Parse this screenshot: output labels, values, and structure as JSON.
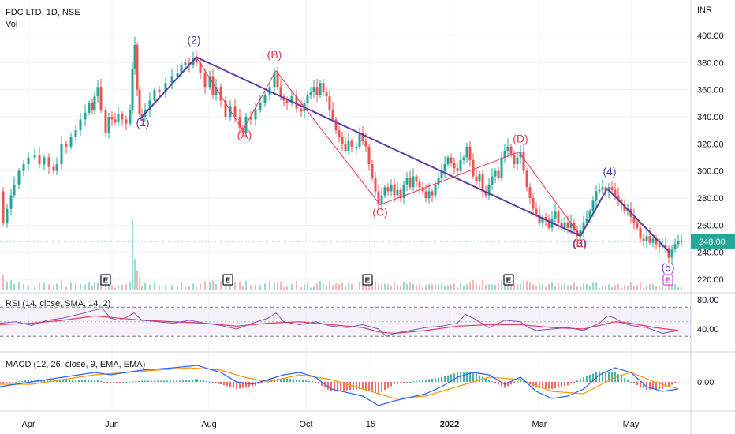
{
  "header": {
    "symbol": "FDC LTD, 1D, NSE",
    "volume_label": "Vol",
    "currency": "INR"
  },
  "indicators": {
    "rsi_label": "RSI (14, close, SMA, 14, 2)",
    "macd_label": "MACD (12, 26, close, 9, EMA, EMA)"
  },
  "colors": {
    "up": "#26a69a",
    "down": "#ef5350",
    "wave_purple": "#5b3fa6",
    "wave_red": "#e53955",
    "price_badge": "#26a69a",
    "rsi_line": "#7e57c2",
    "rsi_ma": "#e53955",
    "macd_line": "#2962ff",
    "signal_line": "#ff9800",
    "earnings_purple": "#c84fd6"
  },
  "chart_data": {
    "type": "candlestick",
    "price_axis": {
      "min": 210,
      "max": 410,
      "ticks": [
        "400.00",
        "380.00",
        "360.00",
        "340.00",
        "320.00",
        "300.00",
        "280.00",
        "260.00",
        "240.00",
        "220.00"
      ],
      "last_price": "248.00"
    },
    "rsi_axis": {
      "ticks": [
        "80.00",
        "40.00"
      ]
    },
    "macd_axis": {
      "ticks": [
        "0.00"
      ]
    },
    "x_ticks": [
      "Apr",
      "Jun",
      "Aug",
      "Oct",
      "15",
      "2022",
      "Mar",
      "May"
    ],
    "price_path": [
      [
        0,
        285
      ],
      [
        4,
        262
      ],
      [
        9,
        272
      ],
      [
        14,
        282
      ],
      [
        18,
        290
      ],
      [
        24,
        300
      ],
      [
        30,
        305
      ],
      [
        36,
        310
      ],
      [
        44,
        312
      ],
      [
        50,
        305
      ],
      [
        56,
        310
      ],
      [
        62,
        303
      ],
      [
        68,
        300
      ],
      [
        72,
        305
      ],
      [
        78,
        320
      ],
      [
        84,
        318
      ],
      [
        90,
        325
      ],
      [
        96,
        330
      ],
      [
        102,
        338
      ],
      [
        108,
        343
      ],
      [
        113,
        350
      ],
      [
        117,
        345
      ],
      [
        120,
        355
      ],
      [
        124,
        362
      ],
      [
        128,
        345
      ],
      [
        134,
        328
      ],
      [
        138,
        340
      ],
      [
        142,
        338
      ],
      [
        146,
        336
      ],
      [
        150,
        342
      ],
      [
        155,
        338
      ],
      [
        160,
        335
      ],
      [
        165,
        345
      ],
      [
        168,
        375
      ],
      [
        171,
        393
      ],
      [
        174,
        360
      ],
      [
        177,
        342
      ],
      [
        180,
        340
      ],
      [
        184,
        345
      ],
      [
        190,
        352
      ],
      [
        196,
        360
      ],
      [
        202,
        358
      ],
      [
        210,
        365
      ],
      [
        218,
        370
      ],
      [
        225,
        372
      ],
      [
        230,
        378
      ],
      [
        235,
        380
      ],
      [
        240,
        378
      ],
      [
        245,
        383
      ],
      [
        249,
        380
      ],
      [
        254,
        372
      ],
      [
        260,
        362
      ],
      [
        266,
        370
      ],
      [
        270,
        356
      ],
      [
        274,
        362
      ],
      [
        280,
        352
      ],
      [
        286,
        340
      ],
      [
        292,
        348
      ],
      [
        298,
        340
      ],
      [
        304,
        332
      ],
      [
        308,
        328
      ],
      [
        312,
        340
      ],
      [
        318,
        338
      ],
      [
        324,
        345
      ],
      [
        330,
        350
      ],
      [
        336,
        356
      ],
      [
        342,
        362
      ],
      [
        348,
        372
      ],
      [
        352,
        362
      ],
      [
        356,
        355
      ],
      [
        360,
        352
      ],
      [
        364,
        350
      ],
      [
        370,
        355
      ],
      [
        376,
        346
      ],
      [
        382,
        344
      ],
      [
        386,
        350
      ],
      [
        390,
        356
      ],
      [
        394,
        358
      ],
      [
        398,
        362
      ],
      [
        402,
        356
      ],
      [
        406,
        365
      ],
      [
        410,
        358
      ],
      [
        414,
        355
      ],
      [
        418,
        345
      ],
      [
        422,
        338
      ],
      [
        426,
        330
      ],
      [
        430,
        325
      ],
      [
        434,
        320
      ],
      [
        438,
        315
      ],
      [
        442,
        322
      ],
      [
        446,
        318
      ],
      [
        452,
        318
      ],
      [
        456,
        328
      ],
      [
        460,
        322
      ],
      [
        464,
        318
      ],
      [
        468,
        305
      ],
      [
        472,
        295
      ],
      [
        476,
        285
      ],
      [
        480,
        276
      ],
      [
        484,
        282
      ],
      [
        488,
        288
      ],
      [
        492,
        285
      ],
      [
        496,
        290
      ],
      [
        500,
        282
      ],
      [
        504,
        286
      ],
      [
        508,
        280
      ],
      [
        512,
        290
      ],
      [
        516,
        295
      ],
      [
        520,
        288
      ],
      [
        524,
        296
      ],
      [
        528,
        292
      ],
      [
        532,
        288
      ],
      [
        536,
        285
      ],
      [
        540,
        280
      ],
      [
        544,
        285
      ],
      [
        548,
        282
      ],
      [
        552,
        290
      ],
      [
        556,
        295
      ],
      [
        560,
        300
      ],
      [
        564,
        305
      ],
      [
        568,
        310
      ],
      [
        572,
        306
      ],
      [
        576,
        302
      ],
      [
        580,
        300
      ],
      [
        584,
        308
      ],
      [
        588,
        310
      ],
      [
        592,
        318
      ],
      [
        596,
        308
      ],
      [
        600,
        296
      ],
      [
        604,
        292
      ],
      [
        608,
        298
      ],
      [
        612,
        285
      ],
      [
        616,
        282
      ],
      [
        620,
        290
      ],
      [
        624,
        296
      ],
      [
        628,
        300
      ],
      [
        632,
        295
      ],
      [
        636,
        310
      ],
      [
        640,
        315
      ],
      [
        644,
        318
      ],
      [
        648,
        312
      ],
      [
        652,
        305
      ],
      [
        656,
        310
      ],
      [
        660,
        314
      ],
      [
        664,
        300
      ],
      [
        668,
        288
      ],
      [
        672,
        280
      ],
      [
        676,
        272
      ],
      [
        680,
        268
      ],
      [
        684,
        262
      ],
      [
        688,
        266
      ],
      [
        692,
        264
      ],
      [
        696,
        258
      ],
      [
        700,
        265
      ],
      [
        704,
        270
      ],
      [
        708,
        262
      ],
      [
        712,
        258
      ],
      [
        716,
        262
      ],
      [
        720,
        258
      ],
      [
        724,
        262
      ],
      [
        728,
        256
      ],
      [
        732,
        252
      ],
      [
        736,
        256
      ],
      [
        740,
        262
      ],
      [
        744,
        265
      ],
      [
        748,
        270
      ],
      [
        752,
        278
      ],
      [
        756,
        285
      ],
      [
        760,
        286
      ],
      [
        764,
        288
      ],
      [
        768,
        285
      ],
      [
        772,
        288
      ],
      [
        776,
        286
      ],
      [
        780,
        282
      ],
      [
        784,
        278
      ],
      [
        788,
        276
      ],
      [
        792,
        270
      ],
      [
        796,
        272
      ],
      [
        800,
        266
      ],
      [
        804,
        262
      ],
      [
        808,
        258
      ],
      [
        812,
        250
      ],
      [
        816,
        248
      ],
      [
        820,
        252
      ],
      [
        824,
        247
      ],
      [
        828,
        250
      ],
      [
        832,
        246
      ],
      [
        836,
        244
      ],
      [
        840,
        245
      ],
      [
        844,
        243
      ],
      [
        848,
        236
      ],
      [
        852,
        242
      ],
      [
        856,
        246
      ],
      [
        860,
        248
      ],
      [
        864,
        248
      ]
    ],
    "wave_lines": [
      {
        "color": "purple",
        "points": [
          [
            177,
            338
          ],
          [
            249,
            384
          ]
        ]
      },
      {
        "color": "purple",
        "points": [
          [
            249,
            384
          ],
          [
            736,
            252
          ]
        ]
      },
      {
        "color": "purple",
        "points": [
          [
            736,
            252
          ],
          [
            770,
            287
          ]
        ]
      },
      {
        "color": "purple",
        "points": [
          [
            770,
            287
          ],
          [
            849,
            240
          ]
        ]
      },
      {
        "color": "red",
        "points": [
          [
            249,
            384
          ],
          [
            308,
            330
          ]
        ]
      },
      {
        "color": "red",
        "points": [
          [
            308,
            330
          ],
          [
            350,
            374
          ]
        ]
      },
      {
        "color": "red",
        "points": [
          [
            350,
            374
          ],
          [
            482,
            275
          ]
        ]
      },
      {
        "color": "red",
        "points": [
          [
            482,
            275
          ],
          [
            658,
            314
          ]
        ]
      },
      {
        "color": "red",
        "points": [
          [
            658,
            314
          ],
          [
            736,
            252
          ]
        ]
      }
    ],
    "wave_labels": [
      {
        "text": "(1)",
        "color": "purple",
        "x": 181,
        "y": 333
      },
      {
        "text": "(2)",
        "color": "purple",
        "x": 246,
        "y": 394
      },
      {
        "text": "(A)",
        "color": "red",
        "x": 310,
        "y": 324
      },
      {
        "text": "(B)",
        "color": "red",
        "x": 348,
        "y": 383
      },
      {
        "text": "(C)",
        "color": "red",
        "x": 482,
        "y": 267
      },
      {
        "text": "(D)",
        "color": "red",
        "x": 660,
        "y": 321
      },
      {
        "text": "(3)",
        "color": "purple",
        "x": 735,
        "y": 244
      },
      {
        "text": "(E)",
        "color": "red",
        "x": 735,
        "y": 244
      },
      {
        "text": "(4)",
        "color": "purple",
        "x": 773,
        "y": 297
      },
      {
        "text": "(5)",
        "color": "purple",
        "x": 847,
        "y": 226
      }
    ],
    "earnings_markers": [
      {
        "x": 134,
        "text": "E",
        "color": "dark"
      },
      {
        "x": 289,
        "text": "E",
        "color": "dark"
      },
      {
        "x": 466,
        "text": "E",
        "color": "dark"
      },
      {
        "x": 645,
        "text": "E",
        "color": "dark"
      },
      {
        "x": 847,
        "text": "E",
        "color": "purple"
      }
    ],
    "rsi": [
      [
        0,
        48
      ],
      [
        20,
        50
      ],
      [
        40,
        45
      ],
      [
        60,
        52
      ],
      [
        80,
        55
      ],
      [
        100,
        60
      ],
      [
        120,
        66
      ],
      [
        130,
        68
      ],
      [
        140,
        55
      ],
      [
        150,
        52
      ],
      [
        160,
        56
      ],
      [
        170,
        62
      ],
      [
        180,
        52
      ],
      [
        200,
        50
      ],
      [
        220,
        48
      ],
      [
        240,
        52
      ],
      [
        260,
        48
      ],
      [
        280,
        45
      ],
      [
        300,
        40
      ],
      [
        320,
        48
      ],
      [
        340,
        55
      ],
      [
        350,
        62
      ],
      [
        360,
        50
      ],
      [
        380,
        46
      ],
      [
        400,
        50
      ],
      [
        420,
        44
      ],
      [
        440,
        42
      ],
      [
        460,
        46
      ],
      [
        480,
        40
      ],
      [
        490,
        30
      ],
      [
        500,
        34
      ],
      [
        520,
        38
      ],
      [
        540,
        42
      ],
      [
        560,
        44
      ],
      [
        580,
        48
      ],
      [
        590,
        60
      ],
      [
        600,
        55
      ],
      [
        620,
        42
      ],
      [
        640,
        52
      ],
      [
        660,
        50
      ],
      [
        670,
        42
      ],
      [
        680,
        38
      ],
      [
        700,
        40
      ],
      [
        720,
        42
      ],
      [
        740,
        38
      ],
      [
        760,
        48
      ],
      [
        770,
        58
      ],
      [
        780,
        55
      ],
      [
        790,
        48
      ],
      [
        800,
        45
      ],
      [
        820,
        42
      ],
      [
        840,
        34
      ],
      [
        850,
        36
      ],
      [
        860,
        38
      ]
    ],
    "rsi_ma": [
      [
        0,
        46
      ],
      [
        40,
        48
      ],
      [
        80,
        52
      ],
      [
        120,
        58
      ],
      [
        140,
        56
      ],
      [
        180,
        52
      ],
      [
        220,
        50
      ],
      [
        260,
        48
      ],
      [
        300,
        44
      ],
      [
        340,
        48
      ],
      [
        380,
        50
      ],
      [
        420,
        46
      ],
      [
        460,
        42
      ],
      [
        480,
        36
      ],
      [
        500,
        34
      ],
      [
        540,
        38
      ],
      [
        580,
        44
      ],
      [
        620,
        46
      ],
      [
        660,
        46
      ],
      [
        700,
        42
      ],
      [
        740,
        40
      ],
      [
        780,
        50
      ],
      [
        800,
        48
      ],
      [
        830,
        42
      ],
      [
        860,
        38
      ]
    ],
    "macd": [
      [
        0,
        -2
      ],
      [
        40,
        0
      ],
      [
        80,
        2
      ],
      [
        120,
        4
      ],
      [
        140,
        3
      ],
      [
        180,
        5
      ],
      [
        220,
        6
      ],
      [
        250,
        7
      ],
      [
        280,
        4
      ],
      [
        300,
        0
      ],
      [
        320,
        -1
      ],
      [
        360,
        3
      ],
      [
        380,
        4
      ],
      [
        400,
        2
      ],
      [
        420,
        -3
      ],
      [
        460,
        -6
      ],
      [
        480,
        -10
      ],
      [
        500,
        -8
      ],
      [
        540,
        -5
      ],
      [
        560,
        -2
      ],
      [
        580,
        2
      ],
      [
        600,
        4
      ],
      [
        620,
        3
      ],
      [
        640,
        -1
      ],
      [
        660,
        2
      ],
      [
        680,
        -4
      ],
      [
        700,
        -7
      ],
      [
        720,
        -6
      ],
      [
        740,
        -3
      ],
      [
        760,
        3
      ],
      [
        780,
        6
      ],
      [
        800,
        4
      ],
      [
        820,
        -2
      ],
      [
        840,
        -4
      ],
      [
        860,
        -3
      ]
    ],
    "signal": [
      [
        0,
        -1
      ],
      [
        40,
        -1
      ],
      [
        80,
        1
      ],
      [
        120,
        3
      ],
      [
        160,
        4
      ],
      [
        200,
        5
      ],
      [
        240,
        6
      ],
      [
        280,
        5
      ],
      [
        310,
        2
      ],
      [
        340,
        0
      ],
      [
        380,
        3
      ],
      [
        420,
        1
      ],
      [
        460,
        -3
      ],
      [
        500,
        -7
      ],
      [
        540,
        -6
      ],
      [
        580,
        -2
      ],
      [
        620,
        2
      ],
      [
        660,
        1
      ],
      [
        700,
        -4
      ],
      [
        740,
        -5
      ],
      [
        780,
        2
      ],
      [
        800,
        4
      ],
      [
        830,
        0
      ],
      [
        860,
        -3
      ]
    ]
  }
}
